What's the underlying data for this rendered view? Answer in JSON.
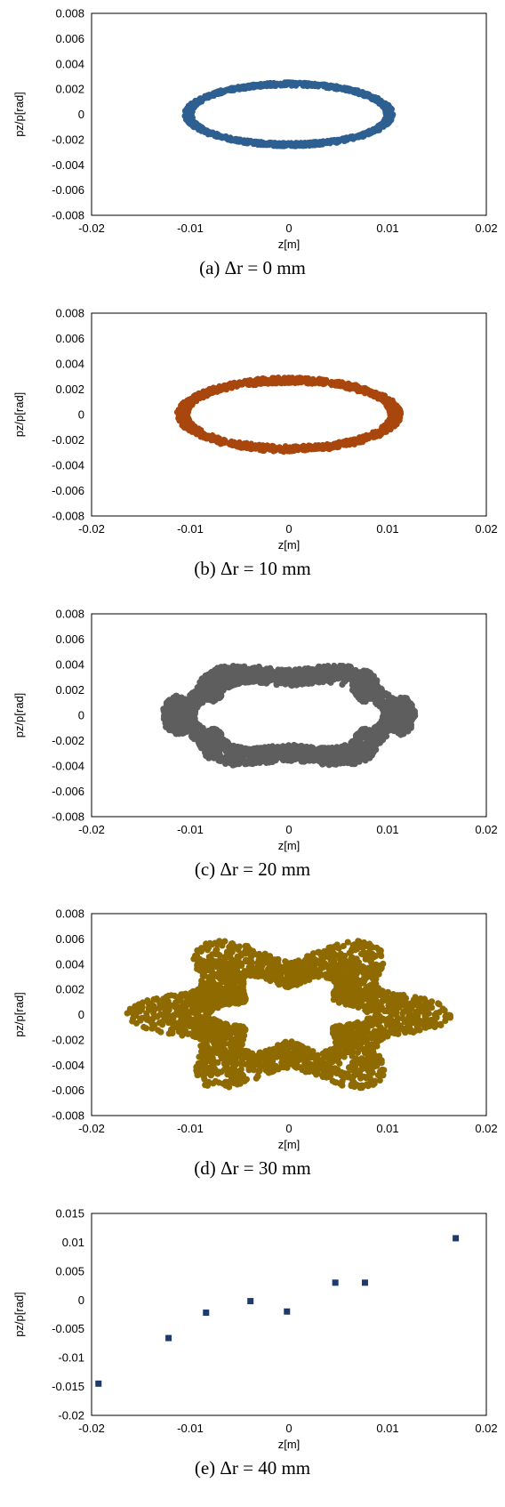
{
  "chart_data": [
    {
      "type": "scatter",
      "caption": "(a) Δr = 0 mm",
      "xlabel": "z[m]",
      "ylabel": "pz/p[rad]",
      "xlim": [
        -0.02,
        0.02
      ],
      "ylim": [
        -0.008,
        0.008
      ],
      "xticks": [
        "-0.02",
        "-0.01",
        "0",
        "0.01",
        "0.02"
      ],
      "yticks": [
        "0.008",
        "0.006",
        "0.004",
        "0.002",
        "0",
        "-0.002",
        "-0.004",
        "-0.006",
        "-0.008"
      ],
      "grid": false,
      "color": "#2e5f91",
      "distribution": {
        "shape": "ellipse-ring",
        "center": [
          0,
          0
        ],
        "z_half_width": 0.0102,
        "pz_half_height": 0.0024,
        "band_thickness_z": 0.0008,
        "band_thickness_pz": 0.0003
      }
    },
    {
      "type": "scatter",
      "caption": "(b) Δr = 10 mm",
      "xlabel": "z[m]",
      "ylabel": "pz/p[rad]",
      "xlim": [
        -0.02,
        0.02
      ],
      "ylim": [
        -0.008,
        0.008
      ],
      "xticks": [
        "-0.02",
        "-0.01",
        "0",
        "0.01",
        "0.02"
      ],
      "yticks": [
        "0.008",
        "0.006",
        "0.004",
        "0.002",
        "0",
        "-0.002",
        "-0.004",
        "-0.006",
        "-0.008"
      ],
      "grid": false,
      "color": "#a9460e",
      "distribution": {
        "shape": "ellipse-ring",
        "center": [
          0,
          0
        ],
        "z_half_width": 0.0108,
        "pz_half_height": 0.0027,
        "band_thickness_z": 0.0012,
        "band_thickness_pz": 0.0005
      }
    },
    {
      "type": "scatter",
      "caption": "(c) Δr = 20 mm",
      "xlabel": "z[m]",
      "ylabel": "pz/p[rad]",
      "xlim": [
        -0.02,
        0.02
      ],
      "ylim": [
        -0.008,
        0.008
      ],
      "xticks": [
        "-0.02",
        "-0.01",
        "0",
        "0.01",
        "0.02"
      ],
      "yticks": [
        "0.008",
        "0.006",
        "0.004",
        "0.002",
        "0",
        "-0.002",
        "-0.004",
        "-0.006",
        "-0.008"
      ],
      "grid": false,
      "color": "#5e5e5e",
      "distribution": {
        "shape": "six-lobed-ring",
        "center": [
          0,
          0
        ],
        "z_half_width": 0.0128,
        "pz_half_height": 0.004,
        "inner_z_half_width": 0.0095,
        "inner_pz_half_height": 0.0026
      }
    },
    {
      "type": "scatter",
      "caption": "(d) Δr = 30 mm",
      "xlabel": "z[m]",
      "ylabel": "pz/p[rad]",
      "xlim": [
        -0.02,
        0.02
      ],
      "ylim": [
        -0.008,
        0.008
      ],
      "xticks": [
        "-0.02",
        "-0.01",
        "0",
        "0.01",
        "0.02"
      ],
      "yticks": [
        "0.008",
        "0.006",
        "0.004",
        "0.002",
        "0",
        "-0.002",
        "-0.004",
        "-0.006",
        "-0.008"
      ],
      "grid": false,
      "color": "#8f6a00",
      "distribution": {
        "shape": "six-lobed-star-ring",
        "center": [
          0,
          0
        ],
        "z_half_width": 0.0135,
        "pz_half_height": 0.0054,
        "inner_z_half_width": 0.0065,
        "inner_pz_half_height": 0.0027
      }
    },
    {
      "type": "scatter",
      "caption": "(e) Δr = 40 mm",
      "xlabel": "z[m]",
      "ylabel": "pz/p[rad]",
      "xlim": [
        -0.02,
        0.02
      ],
      "ylim": [
        -0.02,
        0.015
      ],
      "xticks": [
        "-0.02",
        "-0.01",
        "0",
        "0.01",
        "0.02"
      ],
      "yticks": [
        "0.015",
        "0.01",
        "0.005",
        "0",
        "-0.005",
        "-0.01",
        "-0.015",
        "-0.02"
      ],
      "grid": false,
      "color": "#1f3b6e",
      "points": [
        {
          "x": -0.0193,
          "y": -0.0145
        },
        {
          "x": -0.0122,
          "y": -0.0066
        },
        {
          "x": -0.0084,
          "y": -0.0022
        },
        {
          "x": -0.0039,
          "y": -0.0002
        },
        {
          "x": -0.0002,
          "y": -0.002
        },
        {
          "x": 0.0047,
          "y": 0.003
        },
        {
          "x": 0.0077,
          "y": 0.003
        },
        {
          "x": 0.0169,
          "y": 0.0107
        }
      ]
    }
  ]
}
